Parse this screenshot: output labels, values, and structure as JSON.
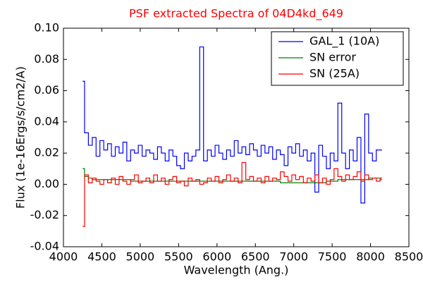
{
  "chart_data": {
    "type": "line",
    "drawstyle": "steps-mid",
    "title": "PSF extracted Spectra of 04D4kd_649",
    "title_color": "#ff0000",
    "xlabel": "Wavelength (Ang.)",
    "ylabel": "Flux (1e-16Ergs/s/cm2/A)",
    "xlim": [
      4000,
      8500
    ],
    "xticks": [
      4000,
      4500,
      5000,
      5500,
      6000,
      6500,
      7000,
      7500,
      8000,
      8500
    ],
    "ylim": [
      -0.04,
      0.1
    ],
    "yticks": [
      -0.04,
      -0.02,
      {
        "value": 0,
        "label": "0.00"
      },
      0.02,
      0.04,
      0.06,
      0.08,
      {
        "value": 0.1,
        "label": "0.10"
      }
    ],
    "grid": false,
    "legend": "upper right",
    "x": [
      4250,
      4300,
      4350,
      4400,
      4450,
      4500,
      4550,
      4600,
      4650,
      4700,
      4750,
      4800,
      4850,
      4900,
      4950,
      5000,
      5050,
      5100,
      5150,
      5200,
      5250,
      5300,
      5350,
      5400,
      5450,
      5500,
      5550,
      5600,
      5650,
      5700,
      5750,
      5800,
      5850,
      5900,
      5950,
      6000,
      6050,
      6100,
      6150,
      6200,
      6250,
      6300,
      6350,
      6400,
      6450,
      6500,
      6550,
      6600,
      6650,
      6700,
      6750,
      6800,
      6850,
      6900,
      6950,
      7000,
      7050,
      7100,
      7150,
      7200,
      7250,
      7300,
      7350,
      7400,
      7450,
      7500,
      7550,
      7600,
      7650,
      7700,
      7750,
      7800,
      7850,
      7900,
      7950,
      8000,
      8050,
      8100,
      8150
    ],
    "series": [
      {
        "name": "GAL_1 (10A)",
        "color": "#0000ff",
        "values": [
          0.066,
          0.033,
          0.025,
          0.03,
          0.018,
          0.028,
          0.022,
          0.026,
          0.018,
          0.024,
          0.02,
          0.027,
          0.015,
          0.022,
          0.02,
          0.025,
          0.018,
          0.022,
          0.02,
          0.016,
          0.024,
          0.02,
          0.015,
          0.022,
          0.018,
          0.012,
          0.01,
          0.02,
          0.015,
          0.018,
          0.022,
          0.088,
          0.015,
          0.022,
          0.018,
          0.025,
          0.02,
          0.016,
          0.022,
          0.018,
          0.028,
          0.02,
          0.024,
          0.019,
          0.026,
          0.022,
          0.018,
          0.025,
          0.02,
          0.024,
          0.016,
          0.022,
          0.019,
          0.012,
          0.024,
          0.02,
          0.026,
          0.018,
          0.022,
          0.015,
          0.02,
          -0.005,
          0.025,
          0.018,
          0.01,
          0.02,
          0.015,
          0.052,
          0.02,
          0.01,
          0.022,
          0.015,
          0.03,
          -0.012,
          0.045,
          0.02,
          0.015,
          0.022,
          0.022
        ]
      },
      {
        "name": "SN error",
        "color": "#008000",
        "values": [
          0.01,
          0.005,
          0.004,
          0.003,
          0.003,
          0.003,
          0.003,
          0.003,
          0.003,
          0.003,
          0.003,
          0.003,
          0.003,
          0.002,
          0.002,
          0.002,
          0.002,
          0.002,
          0.002,
          0.002,
          0.002,
          0.002,
          0.002,
          0.002,
          0.002,
          0.002,
          0.002,
          0.002,
          0.002,
          0.002,
          0.002,
          0.002,
          0.002,
          0.002,
          0.002,
          0.002,
          0.002,
          0.002,
          0.002,
          0.002,
          0.002,
          0.002,
          0.002,
          0.002,
          0.002,
          0.002,
          0.002,
          0.002,
          0.002,
          0.002,
          0.002,
          0.002,
          0.001,
          0.001,
          0.001,
          0.001,
          0.001,
          0.001,
          0.001,
          0.001,
          0.001,
          0.001,
          0.001,
          0.001,
          0.002,
          0.002,
          0.002,
          0.003,
          0.003,
          0.003,
          0.003,
          0.003,
          0.003,
          0.003,
          0.003,
          0.004,
          0.004,
          0.004,
          0.003
        ]
      },
      {
        "name": "SN (25A)",
        "color": "#ff0000",
        "values": [
          -0.027,
          0.006,
          0.001,
          0.004,
          0.002,
          0.0,
          0.003,
          0.001,
          0.004,
          0.0,
          0.005,
          0.002,
          0.0,
          0.003,
          0.006,
          0.001,
          0.002,
          0.004,
          0.001,
          0.006,
          0.002,
          0.004,
          0.0,
          0.003,
          0.005,
          0.001,
          0.002,
          -0.001,
          0.004,
          0.002,
          0.003,
          0.0,
          0.001,
          0.004,
          0.002,
          0.005,
          0.001,
          0.003,
          0.006,
          0.002,
          0.004,
          0.001,
          0.014,
          0.003,
          0.005,
          0.002,
          0.004,
          0.001,
          0.005,
          0.002,
          0.004,
          0.003,
          0.008,
          0.005,
          0.002,
          0.006,
          0.003,
          0.005,
          0.001,
          0.004,
          0.002,
          0.006,
          0.001,
          0.004,
          0.0,
          0.003,
          0.01,
          0.005,
          0.002,
          0.006,
          0.003,
          0.005,
          0.008,
          0.002,
          0.006,
          0.003,
          0.004,
          0.002,
          0.004
        ]
      }
    ]
  }
}
